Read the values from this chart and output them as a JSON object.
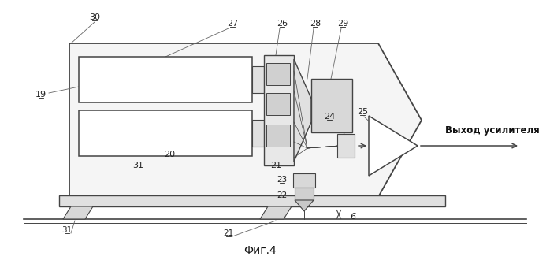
{
  "fig_width": 6.98,
  "fig_height": 3.35,
  "dpi": 100,
  "bg_color": "#ffffff",
  "lc": "#444444",
  "title": "Фиг.4",
  "label_amp": "Выход усилителя"
}
